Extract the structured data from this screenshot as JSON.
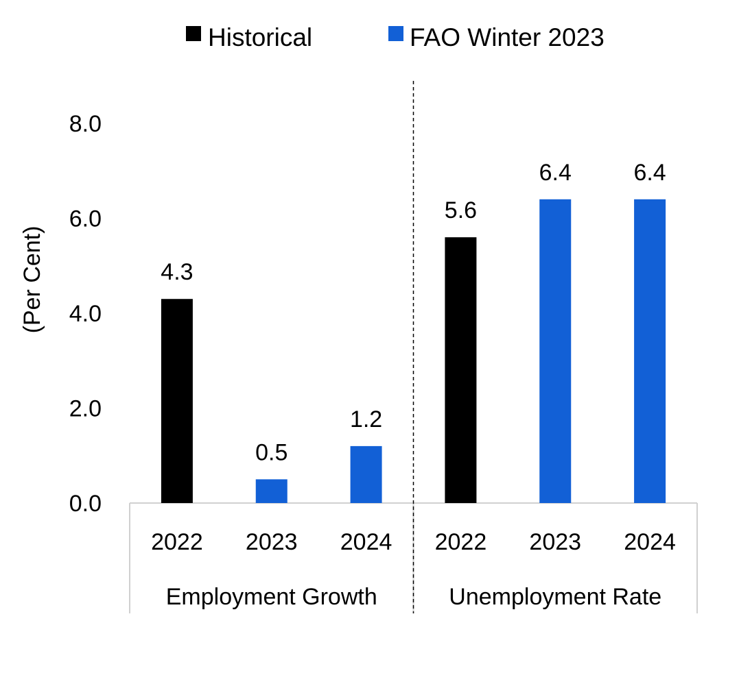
{
  "chart_data": {
    "type": "bar",
    "ylabel": "(Per Cent)",
    "ylim": [
      0,
      8
    ],
    "y_ticks": [
      "0.0",
      "2.0",
      "4.0",
      "6.0",
      "8.0"
    ],
    "grid": false,
    "legend_position": "top-center",
    "groups": [
      {
        "name": "Employment Growth",
        "categories": [
          "2022",
          "2023",
          "2024"
        ]
      },
      {
        "name": "Unemployment Rate",
        "categories": [
          "2022",
          "2023",
          "2024"
        ]
      }
    ],
    "series": [
      {
        "name": "Historical",
        "color": "#000000",
        "points": [
          {
            "group": 0,
            "category": 0,
            "value": 4.3,
            "label": "4.3"
          },
          {
            "group": 1,
            "category": 0,
            "value": 5.6,
            "label": "5.6"
          }
        ]
      },
      {
        "name": "FAO Winter 2023",
        "color": "#1260D6",
        "points": [
          {
            "group": 0,
            "category": 1,
            "value": 0.5,
            "label": "0.5"
          },
          {
            "group": 0,
            "category": 2,
            "value": 1.2,
            "label": "1.2"
          },
          {
            "group": 1,
            "category": 1,
            "value": 6.4,
            "label": "6.4"
          },
          {
            "group": 1,
            "category": 2,
            "value": 6.4,
            "label": "6.4"
          }
        ]
      }
    ]
  }
}
